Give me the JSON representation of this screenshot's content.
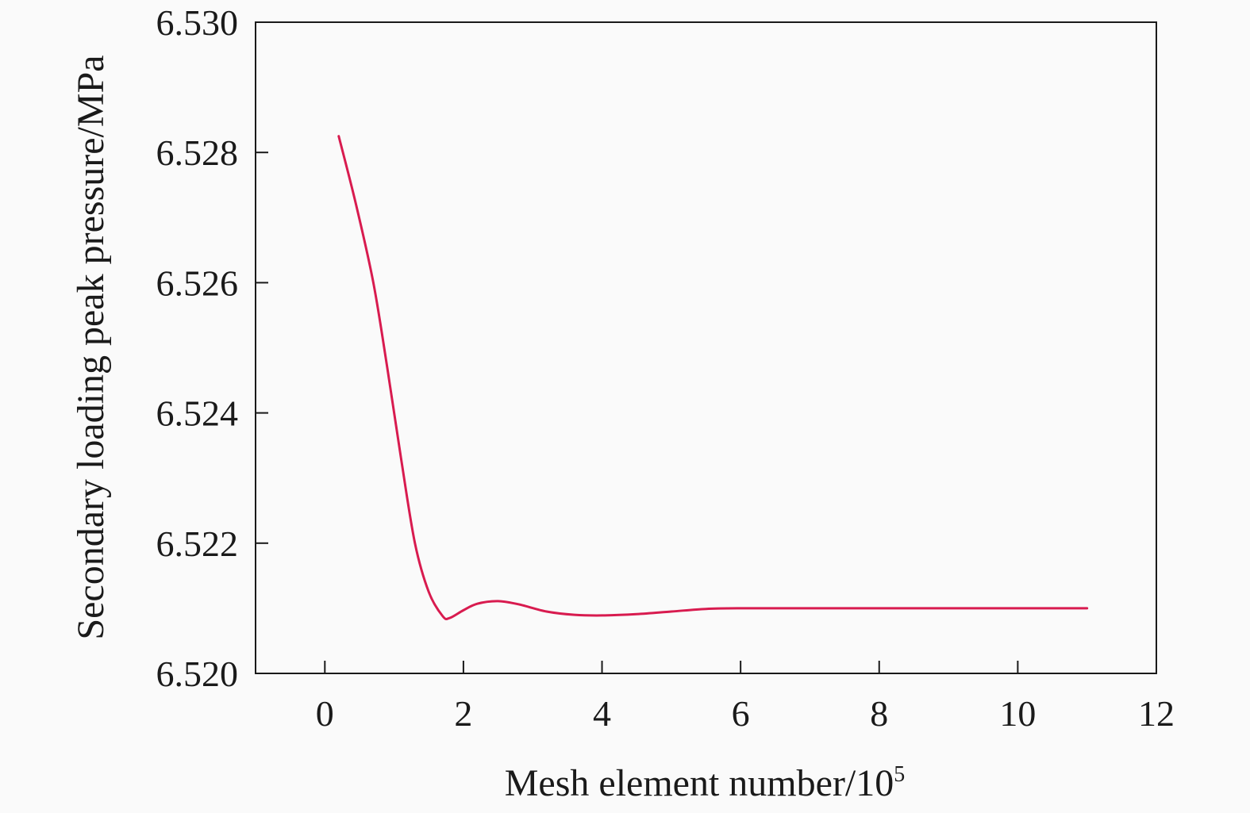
{
  "chart_data": {
    "type": "line",
    "title": "",
    "xlabel": "Mesh element number/10",
    "xlabel_sup": "5",
    "ylabel": "Secondary loading peak pressure/MPa",
    "xlim": [
      -1,
      12
    ],
    "ylim": [
      6.52,
      6.53
    ],
    "xticks": [
      0,
      2,
      4,
      6,
      8,
      10,
      12
    ],
    "xtick_labels": [
      "0",
      "2",
      "4",
      "6",
      "8",
      "10",
      "12"
    ],
    "yticks": [
      6.52,
      6.522,
      6.524,
      6.526,
      6.528,
      6.53
    ],
    "ytick_labels": [
      "6.520",
      "6.522",
      "6.524",
      "6.526",
      "6.528",
      "6.530"
    ],
    "grid": false,
    "series": [
      {
        "color": "#d81b4f",
        "x": [
          0.2,
          0.45,
          0.7,
          0.9,
          1.1,
          1.3,
          1.5,
          1.7,
          1.8,
          2.0,
          2.2,
          2.5,
          2.8,
          3.2,
          3.6,
          4.0,
          4.5,
          5.0,
          5.5,
          6.0,
          7.0,
          8.0,
          9.0,
          10.0,
          11.0
        ],
        "values": [
          6.52825,
          6.5272,
          6.526,
          6.5247,
          6.5233,
          6.522,
          6.52125,
          6.52088,
          6.52085,
          6.52097,
          6.52107,
          6.52111,
          6.52106,
          6.52095,
          6.5209,
          6.52089,
          6.52091,
          6.52095,
          6.52099,
          6.521,
          6.521,
          6.521,
          6.521,
          6.521,
          6.521
        ]
      }
    ]
  }
}
